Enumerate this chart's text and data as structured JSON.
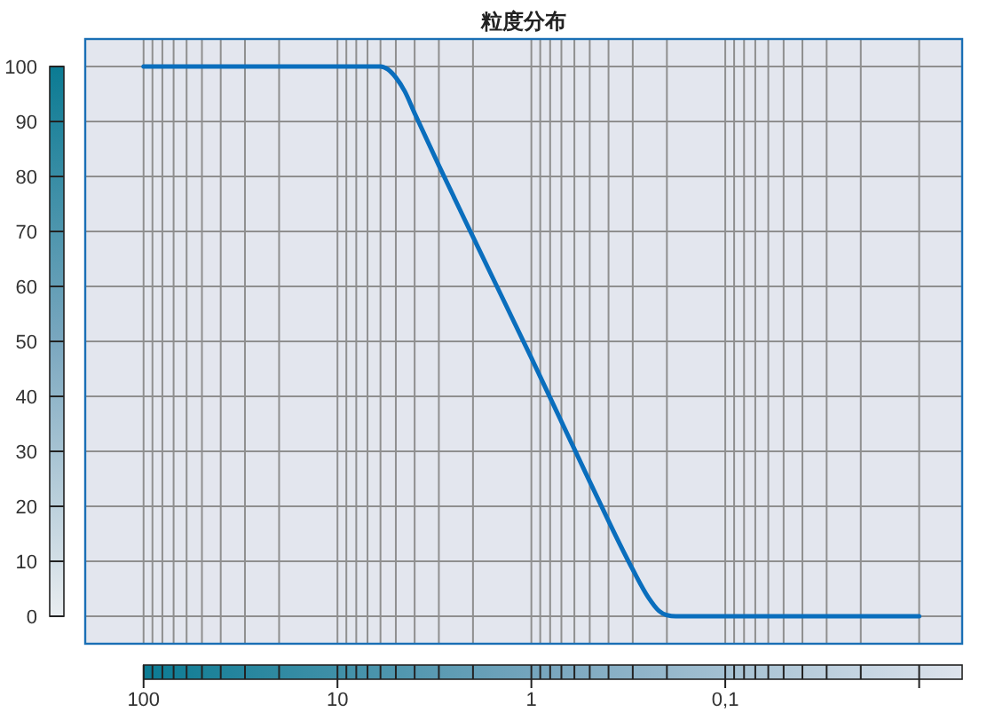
{
  "chart_data": {
    "type": "line",
    "title": "粒度分布",
    "x": [
      100,
      6,
      5.5,
      5,
      4.5,
      4,
      3,
      2,
      1,
      0.5,
      0.3,
      0.25,
      0.22,
      0.2,
      0.18,
      0.01
    ],
    "series": [
      {
        "color": "#0a6ebd",
        "values": [
          100,
          100,
          99.5,
          98,
          95.5,
          91.5,
          82,
          69,
          47,
          24.5,
          8.5,
          3.5,
          1,
          0.2,
          0,
          0
        ]
      }
    ],
    "log": "x",
    "xlim": [
      200,
      0.006
    ],
    "ylim": [
      -5,
      105
    ],
    "xticks": [
      {
        "value": 100,
        "label": "100"
      },
      {
        "value": 90,
        "label": null
      },
      {
        "value": 80,
        "label": null
      },
      {
        "value": 70,
        "label": null
      },
      {
        "value": 60,
        "label": null
      },
      {
        "value": 50,
        "label": null
      },
      {
        "value": 40,
        "label": null
      },
      {
        "value": 30,
        "label": null
      },
      {
        "value": 20,
        "label": null
      },
      {
        "value": 10,
        "label": "10"
      },
      {
        "value": 9,
        "label": null
      },
      {
        "value": 8,
        "label": null
      },
      {
        "value": 7,
        "label": null
      },
      {
        "value": 6,
        "label": null
      },
      {
        "value": 5,
        "label": null
      },
      {
        "value": 4,
        "label": null
      },
      {
        "value": 3,
        "label": null
      },
      {
        "value": 2,
        "label": null
      },
      {
        "value": 1,
        "label": "1"
      },
      {
        "value": 0.9,
        "label": null
      },
      {
        "value": 0.8,
        "label": null
      },
      {
        "value": 0.7,
        "label": null
      },
      {
        "value": 0.6,
        "label": null
      },
      {
        "value": 0.5,
        "label": null
      },
      {
        "value": 0.4,
        "label": null
      },
      {
        "value": 0.3,
        "label": null
      },
      {
        "value": 0.2,
        "label": null
      },
      {
        "value": 0.1,
        "label": "0,1"
      },
      {
        "value": 0.09,
        "label": null
      },
      {
        "value": 0.08,
        "label": null
      },
      {
        "value": 0.07,
        "label": null
      },
      {
        "value": 0.06,
        "label": null
      },
      {
        "value": 0.05,
        "label": null
      },
      {
        "value": 0.04,
        "label": null
      },
      {
        "value": 0.03,
        "label": null
      },
      {
        "value": 0.02,
        "label": null
      },
      {
        "value": 0.01,
        "label": null
      }
    ],
    "yticks": [
      0,
      10,
      20,
      30,
      40,
      50,
      60,
      70,
      80,
      90,
      100
    ],
    "grid": true,
    "marker": "none",
    "line_style": "solid"
  }
}
